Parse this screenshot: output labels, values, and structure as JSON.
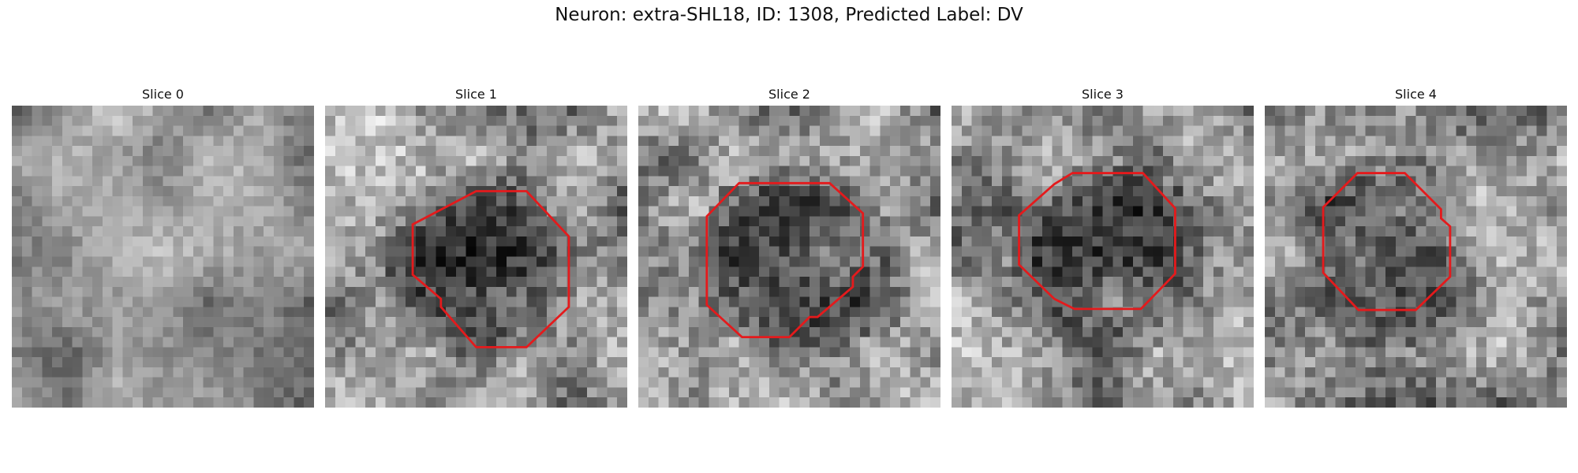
{
  "figure": {
    "title": "Neuron: extra-SHL18, ID: 1308, Predicted Label: DV"
  },
  "colors": {
    "contour": "#e41a1c",
    "background": "#ffffff"
  },
  "panels": [
    {
      "title": "Slice 0",
      "has_contour": false,
      "seed": 11
    },
    {
      "title": "Slice 1",
      "has_contour": true,
      "seed": 23
    },
    {
      "title": "Slice 2",
      "has_contour": true,
      "seed": 37
    },
    {
      "title": "Slice 3",
      "has_contour": true,
      "seed": 53
    },
    {
      "title": "Slice 4",
      "has_contour": true,
      "seed": 71
    }
  ]
}
